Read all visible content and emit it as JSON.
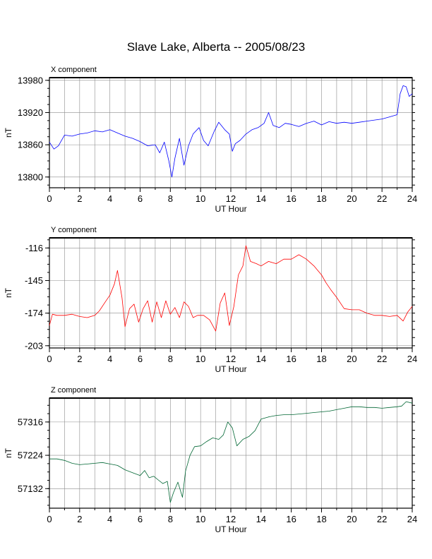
{
  "title": "Slave Lake, Alberta -- 2005/08/23",
  "chart_data": [
    {
      "type": "line",
      "panel_label": "X component",
      "ylabel": "nT",
      "xlabel": "UT Hour",
      "color": "#0000ff",
      "xlim": [
        0,
        24
      ],
      "ylim": [
        13780,
        13985
      ],
      "xticks": [
        0,
        2,
        4,
        6,
        8,
        10,
        12,
        14,
        16,
        18,
        20,
        22,
        24
      ],
      "yticks": [
        13800,
        13860,
        13920,
        13980
      ],
      "grid": true,
      "x": [
        0,
        0.3,
        0.6,
        1,
        1.5,
        2,
        2.5,
        3,
        3.5,
        4,
        4.5,
        5,
        5.5,
        6,
        6.5,
        7,
        7.3,
        7.6,
        7.9,
        8.1,
        8.3,
        8.6,
        8.9,
        9.2,
        9.5,
        9.9,
        10.2,
        10.5,
        10.9,
        11.2,
        11.6,
        11.9,
        12.1,
        12.3,
        12.6,
        13,
        13.4,
        13.8,
        14.2,
        14.5,
        14.8,
        15.2,
        15.6,
        16,
        16.5,
        17,
        17.5,
        18,
        18.5,
        19,
        19.5,
        20,
        20.5,
        21,
        21.5,
        22,
        22.5,
        23,
        23.2,
        23.4,
        23.6,
        23.8,
        24
      ],
      "values": [
        13865,
        13852,
        13858,
        13878,
        13876,
        13880,
        13882,
        13886,
        13884,
        13888,
        13882,
        13876,
        13872,
        13866,
        13858,
        13860,
        13845,
        13865,
        13830,
        13800,
        13835,
        13872,
        13822,
        13858,
        13880,
        13892,
        13868,
        13858,
        13885,
        13902,
        13888,
        13880,
        13848,
        13862,
        13868,
        13880,
        13888,
        13892,
        13900,
        13920,
        13896,
        13892,
        13900,
        13898,
        13894,
        13900,
        13904,
        13897,
        13903,
        13900,
        13902,
        13900,
        13902,
        13904,
        13906,
        13908,
        13912,
        13916,
        13955,
        13970,
        13968,
        13950,
        13955
      ]
    },
    {
      "type": "line",
      "panel_label": "Y component",
      "ylabel": "nT",
      "xlabel": "UT Hour",
      "color": "#ff0000",
      "xlim": [
        0,
        24
      ],
      "ylim": [
        -205,
        -107
      ],
      "xticks": [
        0,
        2,
        4,
        6,
        8,
        10,
        12,
        14,
        16,
        18,
        20,
        22,
        24
      ],
      "yticks": [
        -203,
        -174,
        -145,
        -116
      ],
      "grid": true,
      "x": [
        0,
        0.2,
        0.5,
        1,
        1.5,
        2,
        2.5,
        3,
        3.3,
        3.7,
        4,
        4.3,
        4.5,
        4.8,
        5,
        5.3,
        5.6,
        5.9,
        6.2,
        6.5,
        6.8,
        7.1,
        7.4,
        7.7,
        8,
        8.3,
        8.6,
        8.9,
        9.2,
        9.5,
        9.8,
        10.2,
        10.6,
        11,
        11.3,
        11.6,
        11.9,
        12.2,
        12.5,
        12.8,
        13,
        13.3,
        13.7,
        14,
        14.5,
        15,
        15.5,
        16,
        16.5,
        17,
        17.5,
        18,
        18.3,
        18.6,
        19,
        19.5,
        20,
        20.5,
        21,
        21.5,
        22,
        22.5,
        23,
        23.4,
        23.7,
        24
      ],
      "values": [
        -185,
        -175,
        -176,
        -176,
        -175,
        -177,
        -178,
        -176,
        -172,
        -164,
        -158,
        -148,
        -136,
        -160,
        -186,
        -170,
        -166,
        -182,
        -170,
        -163,
        -182,
        -164,
        -178,
        -163,
        -175,
        -169,
        -178,
        -164,
        -168,
        -178,
        -176,
        -176,
        -180,
        -190,
        -165,
        -156,
        -185,
        -168,
        -140,
        -132,
        -114,
        -128,
        -130,
        -132,
        -128,
        -130,
        -126,
        -126,
        -122,
        -126,
        -132,
        -140,
        -147,
        -153,
        -160,
        -170,
        -171,
        -171,
        -174,
        -176,
        -176,
        -177,
        -176,
        -181,
        -173,
        -168
      ]
    },
    {
      "type": "line",
      "panel_label": "Z component",
      "ylabel": "nT",
      "xlabel": "UT Hour",
      "color": "#006633",
      "xlim": [
        0,
        24
      ],
      "ylim": [
        57078,
        57382
      ],
      "xticks": [
        0,
        2,
        4,
        6,
        8,
        10,
        12,
        14,
        16,
        18,
        20,
        22,
        24
      ],
      "yticks": [
        57132,
        57224,
        57316
      ],
      "grid": true,
      "x": [
        0,
        0.5,
        1,
        1.5,
        2,
        2.5,
        3,
        3.5,
        4,
        4.5,
        5,
        5.5,
        6,
        6.3,
        6.6,
        6.9,
        7.2,
        7.5,
        7.8,
        8,
        8.2,
        8.5,
        8.8,
        9,
        9.3,
        9.6,
        10,
        10.4,
        10.8,
        11.2,
        11.5,
        11.8,
        12.1,
        12.4,
        12.8,
        13.2,
        13.6,
        14,
        14.5,
        15,
        15.5,
        16,
        16.5,
        17,
        17.5,
        18,
        18.5,
        19,
        19.5,
        20,
        20.5,
        21,
        21.5,
        22,
        22.5,
        23,
        23.3,
        23.6,
        24
      ],
      "values": [
        57214,
        57214,
        57210,
        57202,
        57198,
        57200,
        57202,
        57204,
        57200,
        57196,
        57184,
        57176,
        57168,
        57182,
        57162,
        57166,
        57156,
        57146,
        57152,
        57094,
        57120,
        57150,
        57108,
        57180,
        57224,
        57248,
        57250,
        57262,
        57272,
        57268,
        57280,
        57316,
        57300,
        57250,
        57268,
        57276,
        57292,
        57324,
        57330,
        57334,
        57336,
        57336,
        57338,
        57340,
        57342,
        57344,
        57346,
        57350,
        57354,
        57358,
        57358,
        57356,
        57356,
        57354,
        57356,
        57358,
        57360,
        57372,
        57368
      ]
    }
  ]
}
